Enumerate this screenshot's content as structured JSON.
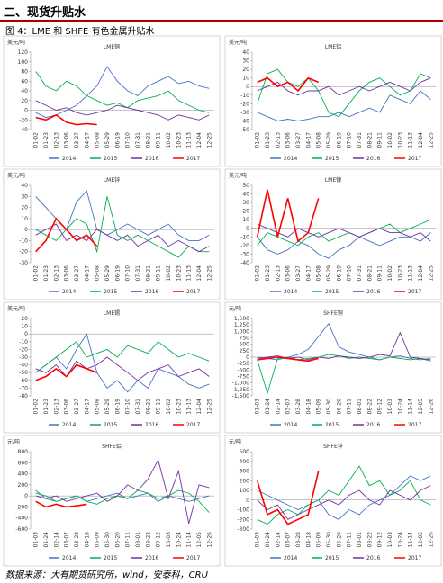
{
  "header": {
    "title": "二、现货升贴水",
    "caption": "图 4：LME 和 SHFE 有色金属升贴水"
  },
  "source": "数据来源：大有期货研究所，wind，安泰科，CRU",
  "chart_data": [
    {
      "type": "line",
      "title": "LME铜",
      "unit": "美元/吨",
      "categories": [
        "01-02",
        "01-23",
        "02-13",
        "03-06",
        "03-27",
        "04-17",
        "05-08",
        "05-29",
        "06-19",
        "07-10",
        "07-31",
        "08-21",
        "09-11",
        "10-02",
        "10-23",
        "11-13",
        "12-04",
        "12-25"
      ],
      "ylim": [
        -40,
        120
      ],
      "yticks": [
        -40,
        -20,
        0,
        20,
        40,
        60,
        80,
        100,
        120
      ],
      "grid": false,
      "series": [
        {
          "name": "2014",
          "color": "#4472c4",
          "values": [
            -5,
            -15,
            -10,
            0,
            10,
            30,
            50,
            90,
            60,
            40,
            30,
            50,
            60,
            70,
            55,
            60,
            50,
            45
          ]
        },
        {
          "name": "2015",
          "color": "#00b050",
          "values": [
            80,
            50,
            40,
            60,
            50,
            30,
            20,
            10,
            15,
            5,
            20,
            25,
            30,
            40,
            20,
            10,
            0,
            -5
          ]
        },
        {
          "name": "2016",
          "color": "#7030a0",
          "values": [
            20,
            10,
            0,
            5,
            -5,
            -10,
            -5,
            0,
            10,
            5,
            0,
            -5,
            -10,
            -20,
            -10,
            -15,
            -20,
            -10
          ]
        },
        {
          "name": "2017",
          "color": "#ff0000",
          "values": [
            -15,
            -20,
            -10,
            -25,
            -30,
            -28,
            -30,
            null,
            null,
            null,
            null,
            null,
            null,
            null,
            null,
            null,
            null,
            null
          ]
        }
      ]
    },
    {
      "type": "line",
      "title": "LME铝",
      "unit": "美元/吨",
      "categories": [
        "01-02",
        "01-23",
        "02-13",
        "03-06",
        "03-27",
        "04-17",
        "05-08",
        "05-29",
        "06-19",
        "07-10",
        "07-31",
        "08-21",
        "09-11",
        "10-02",
        "10-23",
        "11-13",
        "12-04",
        "12-25"
      ],
      "ylim": [
        -50,
        40
      ],
      "yticks": [
        -50,
        -40,
        -30,
        -20,
        -10,
        0,
        10,
        20,
        30,
        40
      ],
      "grid": false,
      "series": [
        {
          "name": "2014",
          "color": "#4472c4",
          "values": [
            -30,
            -35,
            -40,
            -38,
            -40,
            -38,
            -35,
            -35,
            -30,
            -35,
            -30,
            -25,
            -30,
            -10,
            -15,
            -20,
            -5,
            -15
          ]
        },
        {
          "name": "2015",
          "color": "#00b050",
          "values": [
            -20,
            15,
            20,
            5,
            0,
            10,
            -5,
            -30,
            -35,
            -20,
            -5,
            5,
            10,
            0,
            -10,
            -5,
            15,
            10
          ]
        },
        {
          "name": "2016",
          "color": "#7030a0",
          "values": [
            -5,
            0,
            5,
            -5,
            -10,
            -5,
            -5,
            0,
            -10,
            -5,
            0,
            -5,
            0,
            5,
            0,
            -5,
            5,
            10
          ]
        },
        {
          "name": "2017",
          "color": "#ff0000",
          "values": [
            5,
            10,
            0,
            5,
            -5,
            10,
            5,
            null,
            null,
            null,
            null,
            null,
            null,
            null,
            null,
            null,
            null,
            null
          ]
        }
      ]
    },
    {
      "type": "line",
      "title": "LME锌",
      "unit": "美元/吨",
      "categories": [
        "01-02",
        "01-23",
        "02-13",
        "03-06",
        "03-27",
        "04-17",
        "05-08",
        "05-29",
        "06-19",
        "07-10",
        "07-31",
        "08-21",
        "09-11",
        "10-02",
        "10-23",
        "11-13",
        "12-04",
        "12-25"
      ],
      "ylim": [
        -30,
        40
      ],
      "yticks": [
        -30,
        -20,
        -10,
        0,
        10,
        20,
        30,
        40
      ],
      "grid": false,
      "series": [
        {
          "name": "2014",
          "color": "#4472c4",
          "values": [
            30,
            20,
            10,
            0,
            25,
            35,
            0,
            -5,
            0,
            5,
            0,
            -5,
            0,
            5,
            -5,
            -10,
            -10,
            -5
          ]
        },
        {
          "name": "2015",
          "color": "#00b050",
          "values": [
            0,
            -5,
            -10,
            0,
            10,
            5,
            -20,
            30,
            -5,
            -10,
            -5,
            -10,
            -15,
            -20,
            -25,
            -15,
            -20,
            -20
          ]
        },
        {
          "name": "2016",
          "color": "#7030a0",
          "values": [
            -5,
            0,
            5,
            -10,
            -5,
            -10,
            0,
            -5,
            -10,
            -5,
            -15,
            -10,
            -5,
            -15,
            -10,
            -15,
            -20,
            -15
          ]
        },
        {
          "name": "2017",
          "color": "#ff0000",
          "values": [
            -20,
            -10,
            10,
            0,
            -10,
            -5,
            -15,
            null,
            null,
            null,
            null,
            null,
            null,
            null,
            null,
            null,
            null,
            null
          ]
        }
      ]
    },
    {
      "type": "line",
      "title": "LME镍",
      "unit": "美元/吨",
      "categories": [
        "01-02",
        "01-23",
        "02-13",
        "03-06",
        "03-27",
        "04-17",
        "05-08",
        "05-29",
        "06-19",
        "07-10",
        "07-31",
        "08-21",
        "09-11",
        "10-02",
        "10-23",
        "11-13",
        "12-04",
        "12-25"
      ],
      "ylim": [
        -40,
        50
      ],
      "yticks": [
        -40,
        -30,
        -20,
        -10,
        0,
        10,
        20,
        30,
        40,
        50
      ],
      "grid": false,
      "series": [
        {
          "name": "2014",
          "color": "#4472c4",
          "values": [
            -10,
            -25,
            -30,
            -25,
            -15,
            -20,
            -30,
            -35,
            -25,
            -20,
            -10,
            -15,
            -20,
            -15,
            -10,
            -10,
            -15,
            -5
          ]
        },
        {
          "name": "2015",
          "color": "#00b050",
          "values": [
            -20,
            -5,
            -10,
            -15,
            -20,
            -10,
            -5,
            -15,
            -10,
            -5,
            -10,
            -5,
            0,
            5,
            -5,
            0,
            5,
            10
          ]
        },
        {
          "name": "2016",
          "color": "#7030a0",
          "values": [
            5,
            0,
            -5,
            -10,
            0,
            -5,
            -10,
            -5,
            0,
            -5,
            -10,
            -5,
            0,
            -5,
            -5,
            -10,
            -5,
            -15
          ]
        },
        {
          "name": "2017",
          "color": "#ff0000",
          "values": [
            -10,
            45,
            -10,
            35,
            -15,
            -5,
            35,
            null,
            null,
            null,
            null,
            null,
            null,
            null,
            null,
            null,
            null,
            null
          ]
        }
      ]
    },
    {
      "type": "line",
      "title": "LME锡",
      "unit": "美元/吨",
      "categories": [
        "01-02",
        "01-23",
        "02-13",
        "03-06",
        "03-27",
        "04-17",
        "05-08",
        "05-29",
        "06-19",
        "07-10",
        "07-31",
        "08-21",
        "09-11",
        "10-02",
        "10-23",
        "11-13",
        "12-04",
        "12-25"
      ],
      "ylim": [
        -80,
        20
      ],
      "yticks": [
        -80,
        -70,
        -60,
        -50,
        -40,
        -30,
        -20,
        -10,
        0,
        10,
        20
      ],
      "grid": false,
      "series": [
        {
          "name": "2014",
          "color": "#4472c4",
          "values": [
            -50,
            -40,
            -30,
            -45,
            -20,
            0,
            -50,
            -70,
            -60,
            -75,
            -60,
            -70,
            -45,
            -50,
            -55,
            -65,
            -70,
            -65
          ]
        },
        {
          "name": "2015",
          "color": "#00b050",
          "values": [
            -50,
            -40,
            -30,
            -20,
            -10,
            -30,
            -25,
            -20,
            -30,
            -15,
            -20,
            -25,
            -10,
            -20,
            -30,
            -25,
            -30,
            -35
          ]
        },
        {
          "name": "2016",
          "color": "#7030a0",
          "values": [
            -45,
            -50,
            -40,
            -55,
            -35,
            -45,
            -40,
            -30,
            -40,
            -50,
            -60,
            -50,
            -45,
            -40,
            -55,
            -50,
            -45,
            -55
          ]
        },
        {
          "name": "2017",
          "color": "#ff0000",
          "values": [
            -60,
            -55,
            -45,
            -55,
            -40,
            -45,
            -50,
            null,
            null,
            null,
            null,
            null,
            null,
            null,
            null,
            null,
            null,
            null
          ]
        }
      ]
    },
    {
      "type": "line",
      "title": "SHFE铜",
      "unit": "元/吨",
      "categories": [
        "01-03",
        "01-24",
        "02-14",
        "03-07",
        "03-28",
        "04-18",
        "05-09",
        "05-30",
        "06-20",
        "07-11",
        "08-01",
        "08-22",
        "09-12",
        "10-03",
        "10-24",
        "11-14",
        "12-05",
        "12-26"
      ],
      "ylim": [
        -1500,
        1500
      ],
      "yticks": [
        {
          "value": -1500,
          "label": "-1,500"
        },
        {
          "value": -1250,
          "label": "-1,250"
        },
        {
          "value": -1000,
          "label": "-1,000"
        },
        -750,
        -500,
        -250,
        0,
        250,
        500,
        750,
        {
          "value": 1000,
          "label": "1,000"
        },
        {
          "value": 1250,
          "label": "1,250"
        },
        {
          "value": 1500,
          "label": "1,500"
        }
      ],
      "grid": false,
      "series": [
        {
          "name": "2014",
          "color": "#4472c4",
          "values": [
            0,
            -50,
            -100,
            0,
            100,
            300,
            800,
            1300,
            400,
            200,
            100,
            0,
            -100,
            0,
            50,
            -50,
            -100,
            -50
          ]
        },
        {
          "name": "2015",
          "color": "#00b050",
          "values": [
            -100,
            -1400,
            -50,
            0,
            -100,
            -50,
            0,
            100,
            50,
            -50,
            0,
            -50,
            -100,
            0,
            -50,
            -100,
            -50,
            -150
          ]
        },
        {
          "name": "2016",
          "color": "#7030a0",
          "values": [
            -50,
            0,
            50,
            -50,
            0,
            -100,
            0,
            -50,
            50,
            0,
            -50,
            0,
            100,
            50,
            950,
            0,
            -50,
            -100
          ]
        },
        {
          "name": "2017",
          "color": "#ff0000",
          "values": [
            -100,
            -50,
            0,
            -50,
            -100,
            -150,
            -50,
            null,
            null,
            null,
            null,
            null,
            null,
            null,
            null,
            null,
            null,
            null
          ]
        }
      ]
    },
    {
      "type": "line",
      "title": "SHFE铝",
      "unit": "元/吨",
      "categories": [
        "01-03",
        "01-24",
        "02-14",
        "03-07",
        "03-28",
        "04-18",
        "05-09",
        "05-30",
        "06-20",
        "07-11",
        "08-01",
        "08-22",
        "09-12",
        "10-03",
        "10-24",
        "11-14",
        "12-05",
        "12-26"
      ],
      "ylim": [
        -600,
        800
      ],
      "yticks": [
        -600,
        -400,
        -200,
        0,
        200,
        400,
        600,
        800
      ],
      "grid": false,
      "series": [
        {
          "name": "2014",
          "color": "#4472c4",
          "values": [
            100,
            -50,
            -100,
            -50,
            0,
            -100,
            -50,
            0,
            50,
            -50,
            0,
            50,
            -100,
            0,
            -50,
            -100,
            -50,
            0
          ]
        },
        {
          "name": "2015",
          "color": "#00b050",
          "values": [
            50,
            0,
            -100,
            -50,
            0,
            -100,
            -150,
            -50,
            0,
            -50,
            100,
            50,
            -50,
            0,
            100,
            50,
            -100,
            -300
          ]
        },
        {
          "name": "2016",
          "color": "#7030a0",
          "values": [
            0,
            -50,
            0,
            -100,
            -50,
            0,
            50,
            -100,
            0,
            200,
            100,
            300,
            650,
            -50,
            450,
            -500,
            200,
            150
          ]
        },
        {
          "name": "2017",
          "color": "#ff0000",
          "values": [
            -100,
            -200,
            -150,
            -200,
            -180,
            -150,
            null,
            null,
            null,
            null,
            null,
            null,
            null,
            null,
            null,
            null,
            null,
            null
          ]
        }
      ]
    },
    {
      "type": "line",
      "title": "SHFE锌",
      "unit": "元/吨",
      "categories": [
        "01-03",
        "01-24",
        "02-14",
        "03-07",
        "03-28",
        "04-18",
        "05-09",
        "05-30",
        "06-20",
        "07-11",
        "08-01",
        "08-22",
        "09-12",
        "10-03",
        "10-24",
        "11-14",
        "12-05",
        "12-26"
      ],
      "ylim": [
        -300,
        500
      ],
      "yticks": [
        -300,
        -200,
        -100,
        0,
        100,
        200,
        300,
        400,
        500
      ],
      "grid": false,
      "series": [
        {
          "name": "2014",
          "color": "#4472c4",
          "values": [
            100,
            50,
            0,
            -50,
            -100,
            -50,
            0,
            -150,
            -200,
            -100,
            -150,
            -50,
            0,
            50,
            150,
            250,
            200,
            250
          ]
        },
        {
          "name": "2015",
          "color": "#00b050",
          "values": [
            -200,
            -250,
            -150,
            -100,
            -150,
            -50,
            0,
            100,
            50,
            200,
            350,
            150,
            200,
            50,
            100,
            200,
            0,
            -50
          ]
        },
        {
          "name": "2016",
          "color": "#7030a0",
          "values": [
            0,
            -100,
            -50,
            -200,
            -150,
            -100,
            -50,
            0,
            -50,
            50,
            100,
            0,
            -50,
            100,
            50,
            0,
            100,
            150
          ]
        },
        {
          "name": "2017",
          "color": "#ff0000",
          "values": [
            200,
            -150,
            -100,
            -250,
            -200,
            -150,
            300,
            null,
            null,
            null,
            null,
            null,
            null,
            null,
            null,
            null,
            null,
            null
          ]
        }
      ]
    }
  ]
}
